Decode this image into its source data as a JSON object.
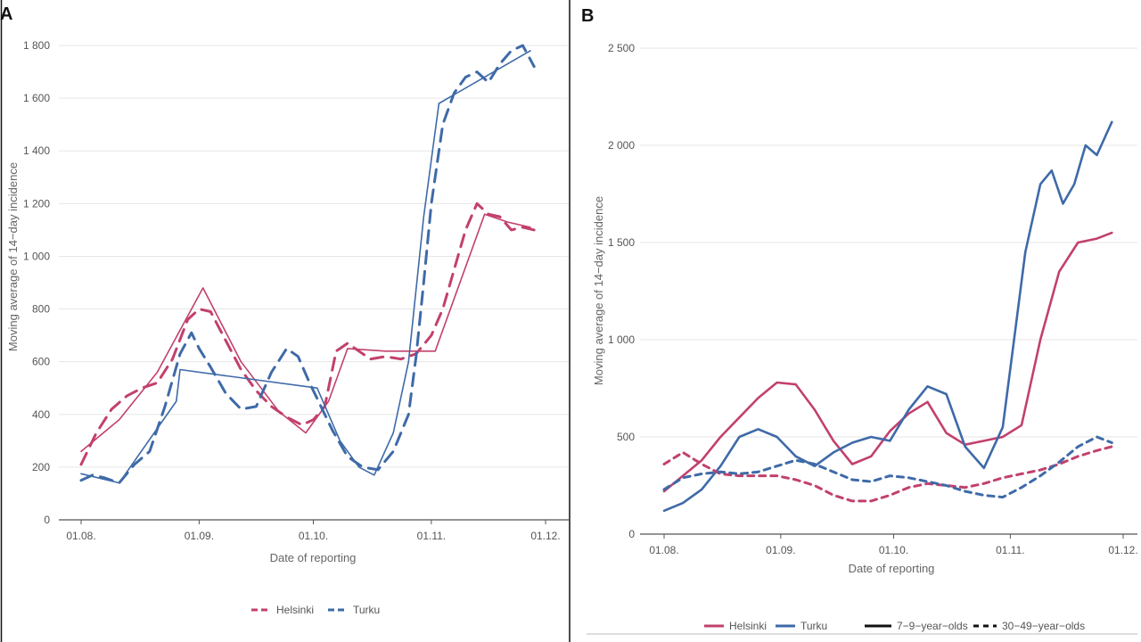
{
  "figure": {
    "colors": {
      "helsinki": "#c2406e",
      "turku": "#3e6aa8",
      "grid": "#e6e6e6",
      "axis": "#555555"
    }
  },
  "chart_data": [
    {
      "panel": "A",
      "type": "line",
      "xlabel": "Date of reporting",
      "ylabel": "Moving average of 14−day incidence",
      "ylim": [
        0,
        1850
      ],
      "xlim": [
        0,
        122
      ],
      "x_unit": "days after 01.08.",
      "x_tick_labels": [
        "01.08.",
        "01.09.",
        "01.10.",
        "01.11.",
        "01.12."
      ],
      "x_tick_values": [
        0,
        31,
        61,
        92,
        122
      ],
      "y_tick_labels": [
        "0",
        "200",
        "400",
        "600",
        "800",
        "1 000",
        "1 200",
        "1 400",
        "1 600",
        "1 800"
      ],
      "y_tick_values": [
        0,
        200,
        400,
        600,
        800,
        1000,
        1200,
        1400,
        1600,
        1800
      ],
      "grid": true,
      "legend_position": "bottom",
      "legend": [
        {
          "label": "Helsinki",
          "color": "#c2406e",
          "style": "dashed"
        },
        {
          "label": "Turku",
          "color": "#3e6aa8",
          "style": "dashed"
        }
      ],
      "series": [
        {
          "name": "Helsinki",
          "style": "dashed",
          "color": "#c2406e",
          "x": [
            0,
            4,
            8,
            12,
            16,
            20,
            24,
            28,
            31,
            34,
            38,
            42,
            46,
            50,
            54,
            58,
            61,
            64,
            67,
            70,
            73,
            76,
            80,
            84,
            88,
            92,
            95,
            98,
            101,
            104,
            107,
            110,
            113,
            116,
            119
          ],
          "y": [
            210,
            330,
            420,
            470,
            500,
            520,
            610,
            760,
            800,
            790,
            680,
            570,
            490,
            430,
            390,
            360,
            380,
            430,
            640,
            670,
            640,
            610,
            620,
            610,
            630,
            700,
            800,
            950,
            1100,
            1200,
            1160,
            1150,
            1100,
            1110,
            1100
          ]
        },
        {
          "name": "Helsinki",
          "style": "solid",
          "color": "#c2406e",
          "x": [
            0,
            10,
            20,
            32,
            42,
            52,
            59,
            65,
            70,
            80,
            93,
            106,
            112,
            118
          ],
          "y": [
            260,
            380,
            560,
            880,
            600,
            410,
            330,
            450,
            650,
            640,
            640,
            1160,
            1130,
            1110
          ]
        },
        {
          "name": "Turku",
          "style": "dashed",
          "color": "#3e6aa8",
          "x": [
            0,
            3,
            6,
            10,
            14,
            18,
            22,
            26,
            29,
            31,
            34,
            38,
            42,
            46,
            50,
            54,
            57,
            60,
            62,
            66,
            70,
            74,
            78,
            82,
            86,
            88,
            90,
            92,
            95,
            98,
            101,
            104,
            107,
            110,
            113,
            116,
            119
          ],
          "y": [
            150,
            170,
            160,
            140,
            210,
            260,
            430,
            630,
            710,
            650,
            580,
            480,
            420,
            430,
            560,
            650,
            620,
            520,
            460,
            340,
            240,
            200,
            190,
            260,
            400,
            620,
            900,
            1200,
            1500,
            1620,
            1680,
            1700,
            1660,
            1730,
            1780,
            1800,
            1720
          ]
        },
        {
          "name": "Turku",
          "style": "solid",
          "color": "#3e6aa8",
          "x": [
            0,
            10,
            25,
            26,
            62,
            68,
            73,
            77,
            82,
            86,
            90,
            94,
            118
          ],
          "y": [
            175,
            140,
            450,
            570,
            500,
            300,
            200,
            170,
            330,
            600,
            1150,
            1580,
            1780
          ]
        }
      ]
    },
    {
      "panel": "B",
      "type": "line",
      "xlabel": "Date of reporting",
      "ylabel": "Moving average of 14−day incidence",
      "ylim": [
        0,
        2500
      ],
      "xlim": [
        0,
        122
      ],
      "x_unit": "days after 01.08.",
      "x_tick_labels": [
        "01.08.",
        "01.09.",
        "01.10.",
        "01.11.",
        "01.12."
      ],
      "x_tick_values": [
        0,
        31,
        61,
        92,
        122
      ],
      "y_tick_labels": [
        "0",
        "500",
        "1 000",
        "1 500",
        "2 000",
        "2 500"
      ],
      "y_tick_values": [
        0,
        500,
        1000,
        1500,
        2000,
        2500
      ],
      "grid": true,
      "legend_position": "bottom",
      "legend": [
        {
          "label": "Helsinki",
          "color": "#c2406e",
          "style": "solid"
        },
        {
          "label": "Turku",
          "color": "#3e6aa8",
          "style": "solid"
        },
        {
          "label": "7−9−year−olds",
          "color": "#111111",
          "style": "solid"
        },
        {
          "label": "30−49−year−olds",
          "color": "#111111",
          "style": "dashed"
        }
      ],
      "series": [
        {
          "name": "Helsinki",
          "group": "7−9−year−olds",
          "style": "solid",
          "color": "#c2406e",
          "x": [
            0,
            5,
            10,
            15,
            20,
            25,
            30,
            35,
            40,
            45,
            50,
            55,
            60,
            65,
            70,
            75,
            80,
            85,
            90,
            95,
            100,
            105,
            110,
            115,
            119
          ],
          "y": [
            220,
            300,
            380,
            500,
            600,
            700,
            780,
            770,
            640,
            480,
            360,
            400,
            530,
            620,
            680,
            520,
            460,
            480,
            500,
            560,
            1000,
            1350,
            1500,
            1520,
            1550
          ]
        },
        {
          "name": "Turku",
          "group": "7−9−year−olds",
          "style": "solid",
          "color": "#3e6aa8",
          "x": [
            0,
            5,
            10,
            15,
            20,
            25,
            30,
            35,
            40,
            45,
            50,
            55,
            60,
            65,
            70,
            75,
            80,
            85,
            90,
            93,
            96,
            100,
            103,
            106,
            109,
            112,
            115,
            119
          ],
          "y": [
            120,
            160,
            230,
            350,
            500,
            540,
            500,
            400,
            350,
            420,
            470,
            500,
            480,
            640,
            760,
            720,
            450,
            340,
            550,
            1000,
            1450,
            1800,
            1870,
            1700,
            1800,
            2000,
            1950,
            2120
          ]
        },
        {
          "name": "Helsinki",
          "group": "30−49−year−olds",
          "style": "dashed",
          "color": "#c2406e",
          "x": [
            0,
            5,
            10,
            15,
            20,
            25,
            30,
            35,
            40,
            45,
            50,
            55,
            60,
            65,
            70,
            75,
            80,
            85,
            90,
            95,
            100,
            105,
            110,
            115,
            119
          ],
          "y": [
            360,
            420,
            360,
            310,
            300,
            300,
            300,
            280,
            250,
            200,
            170,
            170,
            200,
            240,
            260,
            250,
            240,
            260,
            290,
            310,
            330,
            360,
            400,
            430,
            450
          ]
        },
        {
          "name": "Turku",
          "group": "30−49−year−olds",
          "style": "dashed",
          "color": "#3e6aa8",
          "x": [
            0,
            5,
            10,
            15,
            20,
            25,
            30,
            35,
            40,
            45,
            50,
            55,
            60,
            65,
            70,
            75,
            80,
            85,
            90,
            95,
            100,
            105,
            110,
            115,
            119
          ],
          "y": [
            230,
            290,
            310,
            320,
            310,
            320,
            350,
            380,
            360,
            320,
            280,
            270,
            300,
            290,
            270,
            250,
            220,
            200,
            190,
            240,
            300,
            370,
            450,
            500,
            470
          ]
        }
      ]
    }
  ]
}
